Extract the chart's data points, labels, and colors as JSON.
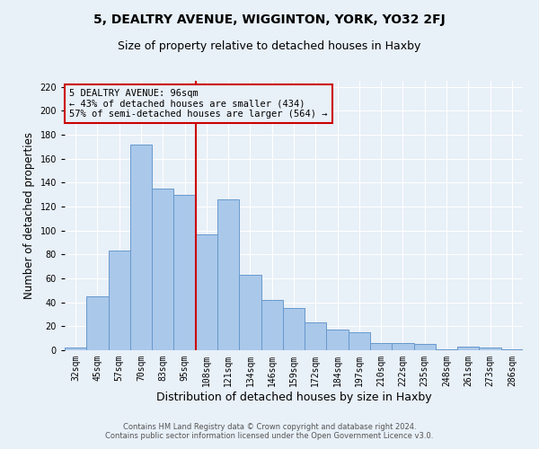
{
  "title": "5, DEALTRY AVENUE, WIGGINTON, YORK, YO32 2FJ",
  "subtitle": "Size of property relative to detached houses in Haxby",
  "xlabel": "Distribution of detached houses by size in Haxby",
  "ylabel": "Number of detached properties",
  "categories": [
    "32sqm",
    "45sqm",
    "57sqm",
    "70sqm",
    "83sqm",
    "95sqm",
    "108sqm",
    "121sqm",
    "134sqm",
    "146sqm",
    "159sqm",
    "172sqm",
    "184sqm",
    "197sqm",
    "210sqm",
    "222sqm",
    "235sqm",
    "248sqm",
    "261sqm",
    "273sqm",
    "286sqm"
  ],
  "values": [
    2,
    45,
    83,
    172,
    135,
    130,
    97,
    126,
    63,
    42,
    35,
    23,
    17,
    15,
    6,
    6,
    5,
    1,
    3,
    2,
    1
  ],
  "bar_color": "#aac8ea",
  "bar_edge_color": "#6699cc",
  "background_color": "#e8f0f8",
  "grid_color": "#ffffff",
  "vline_color": "#cc0000",
  "vline_x_index": 5,
  "annotation_line1": "5 DEALTRY AVENUE: 96sqm",
  "annotation_line2": "← 43% of detached houses are smaller (434)",
  "annotation_line3": "57% of semi-detached houses are larger (564) →",
  "annotation_box_edge": "#cc0000",
  "ylim": [
    0,
    225
  ],
  "yticks": [
    0,
    20,
    40,
    60,
    80,
    100,
    120,
    140,
    160,
    180,
    200,
    220
  ],
  "footer_line1": "Contains HM Land Registry data © Crown copyright and database right 2024.",
  "footer_line2": "Contains public sector information licensed under the Open Government Licence v3.0.",
  "title_fontsize": 10,
  "subtitle_fontsize": 9,
  "tick_fontsize": 7,
  "ylabel_fontsize": 8.5,
  "xlabel_fontsize": 9,
  "annotation_fontsize": 7.5,
  "footer_fontsize": 6
}
